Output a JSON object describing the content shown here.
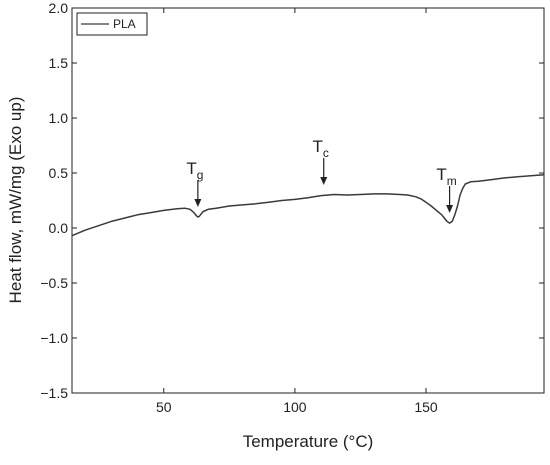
{
  "chart_data": {
    "type": "line",
    "xlabel": "Temperature (°C)",
    "ylabel": "Heat flow, mW/mg (Exo up)",
    "xlim": [
      15,
      195
    ],
    "ylim": [
      -1.5,
      2.0
    ],
    "x_ticks": [
      50,
      100,
      150
    ],
    "x_tick_labels": [
      "50",
      "100",
      "150"
    ],
    "y_ticks": [
      -1.5,
      -1.0,
      -0.5,
      0.0,
      0.5,
      1.0,
      1.5,
      2.0
    ],
    "y_tick_labels": [
      "−1.5",
      "−1.0",
      "−0.5",
      "0.0",
      "0.5",
      "1.0",
      "1.5",
      "2.0"
    ],
    "legend_position": "top-left",
    "grid": false,
    "series": [
      {
        "name": "PLA",
        "color": "#3a3a3a",
        "x": [
          15,
          20,
          25,
          30,
          35,
          40,
          45,
          50,
          55,
          58,
          60,
          61.5,
          62.5,
          63,
          63.5,
          64,
          65,
          67,
          70,
          75,
          80,
          85,
          90,
          95,
          100,
          105,
          110,
          115,
          120,
          125,
          130,
          135,
          140,
          143,
          146,
          148,
          150,
          152,
          154,
          156,
          157,
          158,
          159,
          160,
          161,
          162,
          163,
          164,
          165,
          167,
          170,
          175,
          180,
          185,
          190,
          195
        ],
        "y": [
          -0.07,
          -0.02,
          0.02,
          0.06,
          0.09,
          0.12,
          0.14,
          0.16,
          0.175,
          0.18,
          0.17,
          0.14,
          0.11,
          0.1,
          0.105,
          0.12,
          0.15,
          0.17,
          0.18,
          0.2,
          0.21,
          0.22,
          0.235,
          0.25,
          0.26,
          0.275,
          0.295,
          0.305,
          0.3,
          0.305,
          0.31,
          0.31,
          0.305,
          0.3,
          0.285,
          0.265,
          0.235,
          0.2,
          0.16,
          0.12,
          0.09,
          0.06,
          0.045,
          0.06,
          0.12,
          0.2,
          0.3,
          0.36,
          0.4,
          0.42,
          0.425,
          0.44,
          0.455,
          0.465,
          0.475,
          0.485
        ]
      }
    ],
    "annotations": [
      {
        "main": "T",
        "sub": "g",
        "x": 63,
        "y": 0.1
      },
      {
        "main": "T",
        "sub": "c",
        "x": 111,
        "y": 0.3
      },
      {
        "main": "T",
        "sub": "m",
        "x": 159,
        "y": 0.045
      }
    ]
  }
}
